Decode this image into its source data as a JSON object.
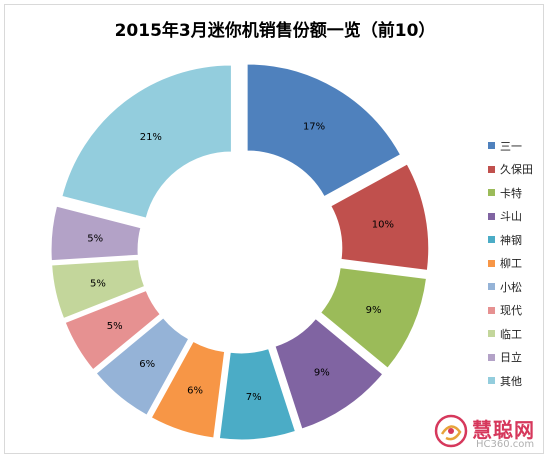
{
  "chart_data": {
    "type": "pie",
    "variant": "exploded-donut",
    "title": "2015年3月迷你机销售份额一览（前10）",
    "categories": [
      "三一",
      "久保田",
      "卡特",
      "斗山",
      "神钢",
      "柳工",
      "小松",
      "现代",
      "临工",
      "日立",
      "其他"
    ],
    "values": [
      17,
      10,
      9,
      9,
      7,
      6,
      6,
      5,
      5,
      5,
      21
    ],
    "labels": [
      "17%",
      "10%",
      "9%",
      "9%",
      "7%",
      "6%",
      "6%",
      "5%",
      "5%",
      "5%",
      "21%"
    ],
    "colors": [
      "#4f81bd",
      "#c0504d",
      "#9bbb59",
      "#8064a2",
      "#4bacc6",
      "#f79646",
      "#95b3d7",
      "#e69191",
      "#c3d69b",
      "#b3a2c7",
      "#93cddd"
    ],
    "legend_position": "right"
  },
  "watermark": {
    "text": "慧聪网",
    "subtext": "HC360.com"
  }
}
